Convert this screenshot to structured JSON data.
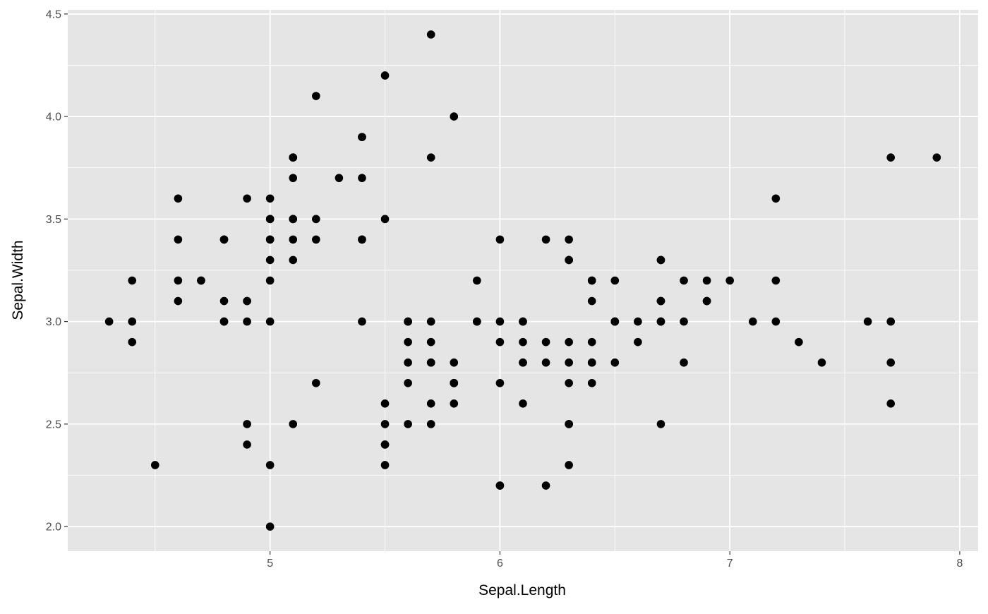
{
  "chart_data": {
    "type": "scatter",
    "title": "",
    "xlabel": "Sepal.Length",
    "ylabel": "Sepal.Width",
    "xlim": [
      4.12,
      8.08
    ],
    "ylim": [
      1.88,
      4.52
    ],
    "xticks": [
      5,
      6,
      7,
      8
    ],
    "xtick_labels": [
      "5",
      "6",
      "7",
      "8"
    ],
    "yticks": [
      2.0,
      2.5,
      3.0,
      3.5,
      4.0,
      4.5
    ],
    "ytick_labels": [
      "2.0",
      "2.5",
      "3.0",
      "3.5",
      "4.0",
      "4.5"
    ],
    "grid": true,
    "panel_background": "#e5e5e5",
    "grid_color": "#ffffff",
    "point_color": "#000000",
    "x": [
      5.1,
      4.9,
      4.7,
      4.6,
      5.0,
      5.4,
      4.6,
      5.0,
      4.4,
      4.9,
      5.4,
      4.8,
      4.8,
      4.3,
      5.8,
      5.7,
      5.4,
      5.1,
      5.7,
      5.1,
      5.4,
      5.1,
      4.6,
      5.1,
      4.8,
      5.0,
      5.0,
      5.2,
      5.2,
      4.7,
      4.8,
      5.4,
      5.2,
      5.5,
      4.9,
      5.0,
      5.5,
      4.9,
      4.4,
      5.1,
      5.0,
      4.5,
      4.4,
      5.0,
      5.1,
      4.8,
      5.1,
      4.6,
      5.3,
      5.0,
      7.0,
      6.4,
      6.9,
      5.5,
      6.5,
      5.7,
      6.3,
      4.9,
      6.6,
      5.2,
      5.0,
      5.9,
      6.0,
      6.1,
      5.6,
      6.7,
      5.6,
      5.8,
      6.2,
      5.6,
      5.9,
      6.1,
      6.3,
      6.1,
      6.4,
      6.6,
      6.8,
      6.7,
      6.0,
      5.7,
      5.5,
      5.5,
      5.8,
      6.0,
      5.4,
      6.0,
      6.7,
      6.3,
      5.6,
      5.5,
      5.5,
      6.1,
      5.8,
      5.0,
      5.6,
      5.7,
      5.7,
      6.2,
      5.1,
      5.7,
      6.3,
      5.8,
      7.1,
      6.3,
      6.5,
      7.6,
      4.9,
      7.3,
      6.7,
      7.2,
      6.5,
      6.4,
      6.8,
      5.7,
      5.8,
      6.4,
      6.5,
      7.7,
      7.7,
      6.0,
      6.9,
      5.6,
      7.7,
      6.3,
      6.7,
      7.2,
      6.2,
      6.1,
      6.4,
      7.2,
      7.4,
      7.9,
      6.4,
      6.3,
      6.1,
      7.7,
      6.3,
      6.4,
      6.0,
      6.9,
      6.7,
      6.9,
      5.8,
      6.8,
      6.7,
      6.7,
      6.3,
      6.5,
      6.2,
      5.9
    ],
    "y": [
      3.5,
      3.0,
      3.2,
      3.1,
      3.6,
      3.9,
      3.4,
      3.4,
      2.9,
      3.1,
      3.7,
      3.4,
      3.0,
      3.0,
      4.0,
      4.4,
      3.9,
      3.5,
      3.8,
      3.8,
      3.4,
      3.7,
      3.6,
      3.3,
      3.4,
      3.0,
      3.4,
      3.5,
      3.4,
      3.2,
      3.1,
      3.4,
      4.1,
      4.2,
      3.1,
      3.2,
      3.5,
      3.6,
      3.0,
      3.4,
      3.5,
      2.3,
      3.2,
      3.5,
      3.8,
      3.0,
      3.8,
      3.2,
      3.7,
      3.3,
      3.2,
      3.2,
      3.1,
      2.3,
      2.8,
      2.8,
      3.3,
      2.4,
      2.9,
      2.7,
      2.0,
      3.0,
      2.2,
      2.9,
      2.9,
      3.1,
      3.0,
      2.7,
      2.2,
      2.5,
      3.2,
      2.8,
      2.5,
      2.8,
      2.9,
      3.0,
      2.8,
      3.0,
      2.9,
      2.6,
      2.4,
      2.4,
      2.7,
      2.7,
      3.0,
      3.4,
      3.1,
      2.3,
      3.0,
      2.5,
      2.6,
      3.0,
      2.6,
      2.3,
      2.7,
      3.0,
      2.9,
      2.9,
      2.5,
      2.8,
      3.3,
      2.7,
      3.0,
      2.9,
      3.0,
      3.0,
      2.5,
      2.9,
      2.5,
      3.6,
      3.2,
      2.7,
      3.0,
      2.5,
      2.8,
      3.2,
      3.0,
      3.8,
      2.6,
      2.2,
      3.2,
      2.8,
      2.8,
      2.7,
      3.3,
      3.2,
      2.8,
      3.0,
      2.8,
      3.0,
      2.8,
      3.8,
      2.8,
      2.8,
      2.6,
      3.0,
      3.4,
      3.1,
      3.0,
      3.1,
      3.1,
      3.1,
      2.7,
      3.2,
      3.3,
      3.0,
      2.5,
      3.0,
      3.4,
      3.0
    ]
  }
}
